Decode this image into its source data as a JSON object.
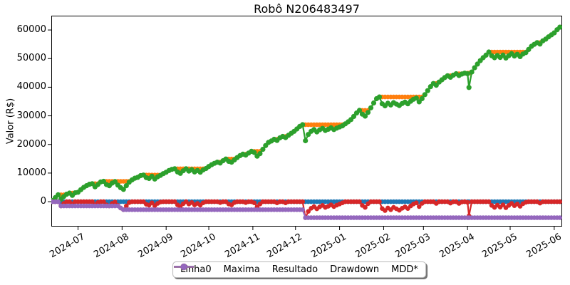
{
  "chart_data": {
    "type": "line",
    "title": "Robô N206483497",
    "xlabel": "",
    "ylabel": "Valor (R$)",
    "grid": false,
    "legend_position": "lower center, below axes",
    "ylim": [
      -8700,
      65000
    ],
    "xlim": [
      "2024-06-12",
      "2025-06-06"
    ],
    "y_tick_values": [
      0,
      10000,
      20000,
      30000,
      40000,
      50000,
      60000
    ],
    "y_tick_labels": [
      "0",
      "10000",
      "20000",
      "30000",
      "40000",
      "50000",
      "60000"
    ],
    "x_tick_labels": [
      "2024-07",
      "2024-08",
      "2024-09",
      "2024-10",
      "2024-11",
      "2024-12",
      "2025-01",
      "2025-02",
      "2025-03",
      "2025-04",
      "2025-05",
      "2025-06"
    ],
    "marker": "o",
    "dates": [
      "2024-06-13",
      "2024-06-15",
      "2024-06-17",
      "2024-06-19",
      "2024-06-21",
      "2024-06-23",
      "2024-06-25",
      "2024-06-27",
      "2024-06-29",
      "2024-07-01",
      "2024-07-03",
      "2024-07-05",
      "2024-07-07",
      "2024-07-09",
      "2024-07-11",
      "2024-07-13",
      "2024-07-15",
      "2024-07-17",
      "2024-07-19",
      "2024-07-21",
      "2024-07-23",
      "2024-07-25",
      "2024-07-27",
      "2024-07-29",
      "2024-07-31",
      "2024-08-02",
      "2024-08-04",
      "2024-08-06",
      "2024-08-08",
      "2024-08-10",
      "2024-08-12",
      "2024-08-14",
      "2024-08-16",
      "2024-08-18",
      "2024-08-20",
      "2024-08-22",
      "2024-08-24",
      "2024-08-26",
      "2024-08-28",
      "2024-08-30",
      "2024-09-01",
      "2024-09-03",
      "2024-09-05",
      "2024-09-07",
      "2024-09-09",
      "2024-09-11",
      "2024-09-13",
      "2024-09-15",
      "2024-09-17",
      "2024-09-19",
      "2024-09-21",
      "2024-09-23",
      "2024-09-25",
      "2024-09-27",
      "2024-09-29",
      "2024-10-01",
      "2024-10-03",
      "2024-10-05",
      "2024-10-07",
      "2024-10-09",
      "2024-10-11",
      "2024-10-13",
      "2024-10-15",
      "2024-10-17",
      "2024-10-19",
      "2024-10-21",
      "2024-10-23",
      "2024-10-25",
      "2024-10-27",
      "2024-10-29",
      "2024-10-31",
      "2024-11-02",
      "2024-11-04",
      "2024-11-06",
      "2024-11-08",
      "2024-11-10",
      "2024-11-12",
      "2024-11-14",
      "2024-11-16",
      "2024-11-18",
      "2024-11-20",
      "2024-11-22",
      "2024-11-24",
      "2024-11-26",
      "2024-11-28",
      "2024-11-30",
      "2024-12-02",
      "2024-12-04",
      "2024-12-06",
      "2024-12-08",
      "2024-12-10",
      "2024-12-12",
      "2024-12-14",
      "2024-12-16",
      "2024-12-18",
      "2024-12-20",
      "2024-12-22",
      "2024-12-24",
      "2024-12-26",
      "2024-12-28",
      "2024-12-30",
      "2025-01-01",
      "2025-01-03",
      "2025-01-05",
      "2025-01-07",
      "2025-01-09",
      "2025-01-11",
      "2025-01-13",
      "2025-01-15",
      "2025-01-17",
      "2025-01-19",
      "2025-01-21",
      "2025-01-23",
      "2025-01-25",
      "2025-01-27",
      "2025-01-29",
      "2025-01-31",
      "2025-02-02",
      "2025-02-04",
      "2025-02-06",
      "2025-02-08",
      "2025-02-10",
      "2025-02-12",
      "2025-02-14",
      "2025-02-16",
      "2025-02-18",
      "2025-02-20",
      "2025-02-22",
      "2025-02-24",
      "2025-02-26",
      "2025-02-28",
      "2025-03-02",
      "2025-03-04",
      "2025-03-06",
      "2025-03-08",
      "2025-03-10",
      "2025-03-12",
      "2025-03-14",
      "2025-03-16",
      "2025-03-18",
      "2025-03-20",
      "2025-03-22",
      "2025-03-24",
      "2025-03-26",
      "2025-03-28",
      "2025-03-30",
      "2025-04-01",
      "2025-04-02",
      "2025-04-04",
      "2025-04-06",
      "2025-04-08",
      "2025-04-10",
      "2025-04-12",
      "2025-04-14",
      "2025-04-16",
      "2025-04-18",
      "2025-04-20",
      "2025-04-22",
      "2025-04-24",
      "2025-04-26",
      "2025-04-28",
      "2025-04-30",
      "2025-05-02",
      "2025-05-04",
      "2025-05-06",
      "2025-05-08",
      "2025-05-10",
      "2025-05-12",
      "2025-05-14",
      "2025-05-16",
      "2025-05-18",
      "2025-05-20",
      "2025-05-22",
      "2025-05-24",
      "2025-05-26",
      "2025-05-28",
      "2025-05-30",
      "2025-06-01",
      "2025-06-03",
      "2025-06-05"
    ],
    "series": [
      {
        "name": "Linha0",
        "color": "#1f77b4",
        "derivation": "constant-zero"
      },
      {
        "name": "Maxima",
        "color": "#ff7f0e",
        "derivation": "running-max-of-resultado"
      },
      {
        "name": "Resultado",
        "color": "#2ca02c",
        "derivation": "base",
        "values": [
          400,
          1400,
          2400,
          900,
          1800,
          2600,
          3000,
          2200,
          3100,
          3300,
          4200,
          5000,
          5600,
          6100,
          6300,
          5200,
          6000,
          6900,
          7100,
          6000,
          5600,
          6500,
          7000,
          5800,
          4900,
          4300,
          5600,
          6800,
          7600,
          8200,
          8500,
          9100,
          9300,
          8400,
          8100,
          8900,
          7900,
          8700,
          9200,
          9800,
          10300,
          10900,
          11300,
          11500,
          10400,
          9900,
          10800,
          11500,
          10700,
          11200,
          10400,
          10900,
          10300,
          11100,
          11600,
          12300,
          12900,
          13400,
          13800,
          13500,
          14300,
          14900,
          14100,
          13800,
          14600,
          15400,
          16100,
          16600,
          16300,
          17000,
          17600,
          17200,
          15900,
          16800,
          18300,
          19600,
          20700,
          21200,
          21800,
          21400,
          22300,
          22800,
          22400,
          23200,
          23900,
          24600,
          25400,
          26300,
          26900,
          21300,
          23500,
          24600,
          25200,
          24400,
          25100,
          25600,
          24900,
          25300,
          25800,
          25200,
          25700,
          26100,
          26500,
          27200,
          27900,
          28700,
          29800,
          31000,
          31900,
          30600,
          29900,
          31200,
          32800,
          34500,
          36000,
          36600,
          34200,
          33500,
          34400,
          33800,
          34600,
          34100,
          33600,
          34300,
          34800,
          34200,
          35100,
          35800,
          36200,
          34900,
          36000,
          37400,
          38800,
          40200,
          41300,
          40700,
          41800,
          42600,
          43400,
          44000,
          43500,
          44200,
          44700,
          44100,
          44600,
          44900,
          44700,
          39900,
          45300,
          46800,
          48100,
          49300,
          50300,
          51200,
          52300,
          51000,
          50300,
          51100,
          50400,
          51200,
          50200,
          51000,
          51700,
          50900,
          51500,
          50700,
          51600,
          52100,
          53200,
          54300,
          55000,
          55600,
          55100,
          56200,
          56800,
          57600,
          58300,
          59000,
          60100,
          61000
        ]
      },
      {
        "name": "Drawdown",
        "color": "#d62728",
        "derivation": "resultado-minus-maxima"
      },
      {
        "name": "MDD*",
        "color": "#9467bd",
        "derivation": "running-min-of-drawdown"
      }
    ]
  }
}
